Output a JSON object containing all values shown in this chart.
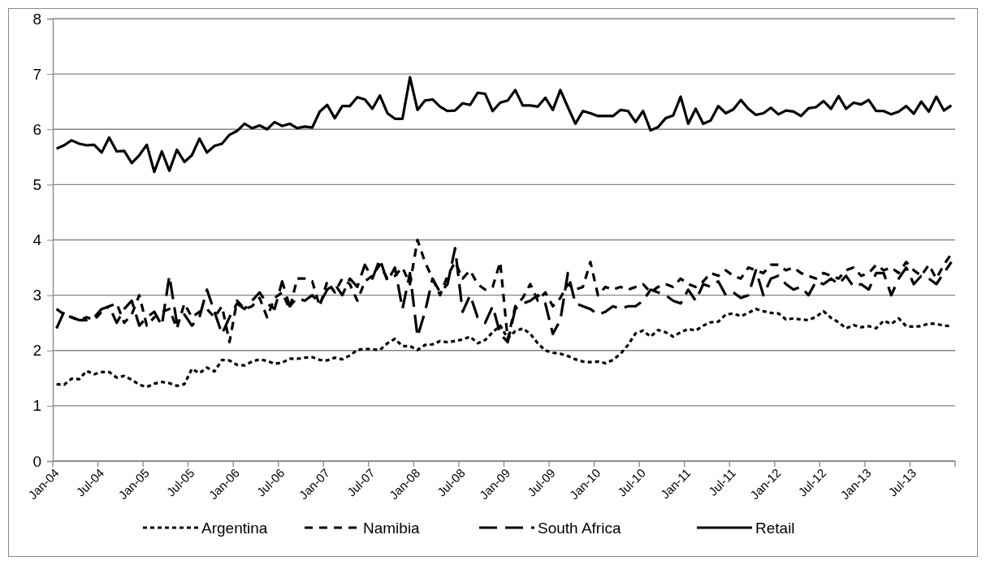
{
  "chart_data": {
    "type": "line",
    "categories": [
      "Jan-04",
      null,
      null,
      null,
      null,
      null,
      "Jul-04",
      null,
      null,
      null,
      null,
      null,
      "Jan-05",
      null,
      null,
      null,
      null,
      null,
      "Jul-05",
      null,
      null,
      null,
      null,
      null,
      "Jan-06",
      null,
      null,
      null,
      null,
      null,
      "Jul-06",
      null,
      null,
      null,
      null,
      null,
      "Jan-07",
      null,
      null,
      null,
      null,
      null,
      "Jul-07",
      null,
      null,
      null,
      null,
      null,
      "Jan-08",
      null,
      null,
      null,
      null,
      null,
      "Jul-08",
      null,
      null,
      null,
      null,
      null,
      "Jan-09",
      null,
      null,
      null,
      null,
      null,
      "Jul-09",
      null,
      null,
      null,
      null,
      null,
      "Jan-10",
      null,
      null,
      null,
      null,
      null,
      "Jul-10",
      null,
      null,
      null,
      null,
      null,
      "Jan-11",
      null,
      null,
      null,
      null,
      null,
      "Jul-11",
      null,
      null,
      null,
      null,
      null,
      "Jan-12",
      null,
      null,
      null,
      null,
      null,
      "Jul-12",
      null,
      null,
      null,
      null,
      null,
      "Jan-13",
      null,
      null,
      null,
      null,
      null,
      "Jul-13",
      null,
      null,
      null,
      null,
      null
    ],
    "ylim": [
      0,
      8
    ],
    "yticks": [
      0,
      1,
      2,
      3,
      4,
      5,
      6,
      7,
      8
    ],
    "grid": "y",
    "legend": "bottom",
    "marker": "none",
    "series": [
      {
        "name": "Argentina",
        "color": "#000000",
        "line_style": "dotted",
        "values": [
          1.39,
          1.38,
          1.49,
          1.48,
          1.63,
          1.57,
          1.61,
          1.61,
          1.51,
          1.54,
          1.47,
          1.38,
          1.34,
          1.4,
          1.43,
          1.41,
          1.36,
          1.39,
          1.67,
          1.59,
          1.69,
          1.62,
          1.83,
          1.82,
          1.74,
          1.73,
          1.8,
          1.84,
          1.81,
          1.76,
          1.78,
          1.85,
          1.85,
          1.87,
          1.88,
          1.83,
          1.82,
          1.87,
          1.84,
          1.91,
          2.01,
          2.03,
          2.02,
          2.01,
          2.13,
          2.21,
          2.08,
          2.08,
          2.01,
          2.1,
          2.11,
          2.17,
          2.15,
          2.17,
          2.2,
          2.25,
          2.13,
          2.19,
          2.33,
          2.45,
          2.22,
          2.35,
          2.4,
          2.3,
          2.13,
          2.0,
          1.96,
          1.94,
          1.9,
          1.84,
          1.8,
          1.79,
          1.8,
          1.77,
          1.83,
          1.94,
          2.1,
          2.31,
          2.36,
          2.25,
          2.37,
          2.33,
          2.25,
          2.33,
          2.39,
          2.36,
          2.45,
          2.51,
          2.52,
          2.65,
          2.67,
          2.62,
          2.68,
          2.75,
          2.71,
          2.68,
          2.67,
          2.56,
          2.58,
          2.56,
          2.55,
          2.61,
          2.71,
          2.59,
          2.51,
          2.4,
          2.46,
          2.42,
          2.44,
          2.4,
          2.54,
          2.48,
          2.58,
          2.44,
          2.43,
          2.44,
          2.49,
          2.48,
          2.45,
          2.44
        ]
      },
      {
        "name": "Namibia",
        "color": "#000000",
        "line_style": "dashed",
        "values": [
          2.75,
          2.65,
          2.6,
          2.55,
          2.6,
          2.55,
          2.7,
          2.8,
          2.85,
          2.5,
          2.65,
          3.0,
          2.45,
          2.6,
          2.7,
          2.75,
          2.4,
          2.85,
          2.6,
          2.7,
          2.75,
          2.6,
          2.8,
          2.15,
          2.9,
          2.75,
          2.8,
          2.95,
          2.6,
          2.95,
          3.05,
          2.75,
          3.3,
          3.3,
          3.25,
          2.8,
          3.25,
          3.05,
          3.3,
          3.2,
          2.9,
          3.25,
          3.35,
          3.55,
          3.3,
          3.35,
          3.5,
          3.2,
          4.0,
          3.6,
          3.3,
          3.0,
          3.35,
          3.6,
          3.3,
          3.45,
          3.2,
          3.1,
          3.15,
          3.6,
          2.2,
          2.8,
          2.95,
          3.2,
          2.9,
          3.05,
          2.8,
          2.95,
          3.2,
          3.1,
          3.15,
          3.6,
          3.0,
          3.15,
          3.1,
          3.15,
          3.1,
          3.15,
          3.2,
          3.05,
          3.15,
          3.2,
          3.15,
          3.3,
          3.2,
          3.15,
          3.25,
          3.4,
          3.35,
          3.45,
          3.35,
          3.3,
          3.5,
          3.45,
          3.4,
          3.55,
          3.55,
          3.45,
          3.5,
          3.4,
          3.35,
          3.3,
          3.4,
          3.35,
          3.3,
          3.45,
          3.5,
          3.35,
          3.4,
          3.55,
          3.45,
          3.5,
          3.4,
          3.6,
          3.45,
          3.35,
          3.55,
          3.3,
          3.55,
          3.75
        ]
      },
      {
        "name": "South Africa",
        "color": "#000000",
        "line_style": "longdashed",
        "values": [
          2.4,
          2.7,
          2.6,
          2.55,
          2.55,
          2.6,
          2.75,
          2.8,
          2.5,
          2.75,
          2.9,
          2.45,
          2.6,
          2.7,
          2.45,
          3.35,
          2.5,
          2.65,
          2.45,
          2.6,
          3.1,
          2.7,
          2.3,
          2.6,
          2.85,
          2.75,
          2.9,
          3.05,
          2.85,
          2.75,
          3.25,
          2.8,
          2.95,
          2.9,
          3.0,
          2.85,
          3.1,
          3.2,
          3.0,
          3.3,
          3.15,
          3.55,
          3.3,
          3.65,
          3.25,
          3.5,
          2.75,
          3.4,
          2.25,
          2.7,
          3.3,
          3.05,
          3.2,
          3.85,
          2.7,
          3.0,
          2.6,
          2.5,
          2.8,
          2.3,
          2.15,
          2.75,
          2.85,
          2.9,
          3.0,
          2.85,
          2.3,
          2.55,
          3.4,
          2.85,
          2.8,
          2.75,
          2.65,
          2.7,
          2.8,
          2.75,
          2.8,
          2.8,
          2.9,
          3.1,
          3.05,
          3.0,
          2.9,
          2.85,
          3.1,
          2.9,
          3.2,
          3.15,
          3.25,
          3.0,
          3.05,
          2.95,
          3.0,
          3.45,
          3.0,
          3.3,
          3.35,
          3.2,
          3.1,
          3.15,
          3.0,
          3.25,
          3.2,
          3.3,
          3.2,
          3.35,
          3.15,
          3.2,
          3.1,
          3.4,
          3.4,
          3.0,
          3.3,
          3.5,
          3.2,
          3.35,
          3.3,
          3.2,
          3.4,
          3.6
        ]
      },
      {
        "name": "Retail",
        "color": "#000000",
        "line_style": "solid",
        "values": [
          5.65,
          5.71,
          5.8,
          5.74,
          5.71,
          5.72,
          5.58,
          5.85,
          5.6,
          5.61,
          5.39,
          5.53,
          5.72,
          5.23,
          5.6,
          5.25,
          5.63,
          5.41,
          5.53,
          5.83,
          5.58,
          5.7,
          5.74,
          5.9,
          5.97,
          6.1,
          6.02,
          6.07,
          6.0,
          6.13,
          6.06,
          6.1,
          6.02,
          6.05,
          6.03,
          6.32,
          6.44,
          6.2,
          6.42,
          6.42,
          6.58,
          6.54,
          6.37,
          6.61,
          6.29,
          6.19,
          6.19,
          6.94,
          6.35,
          6.52,
          6.54,
          6.41,
          6.33,
          6.34,
          6.47,
          6.44,
          6.66,
          6.64,
          6.33,
          6.48,
          6.52,
          6.71,
          6.43,
          6.43,
          6.41,
          6.57,
          6.35,
          6.71,
          6.4,
          6.1,
          6.33,
          6.29,
          6.24,
          6.24,
          6.24,
          6.35,
          6.33,
          6.13,
          6.33,
          5.98,
          6.04,
          6.2,
          6.25,
          6.59,
          6.1,
          6.37,
          6.1,
          6.16,
          6.42,
          6.29,
          6.36,
          6.53,
          6.37,
          6.26,
          6.29,
          6.39,
          6.27,
          6.34,
          6.32,
          6.24,
          6.38,
          6.4,
          6.51,
          6.37,
          6.6,
          6.37,
          6.48,
          6.45,
          6.53,
          6.33,
          6.33,
          6.27,
          6.32,
          6.42,
          6.28,
          6.5,
          6.32,
          6.59,
          6.34,
          6.43
        ]
      }
    ]
  }
}
